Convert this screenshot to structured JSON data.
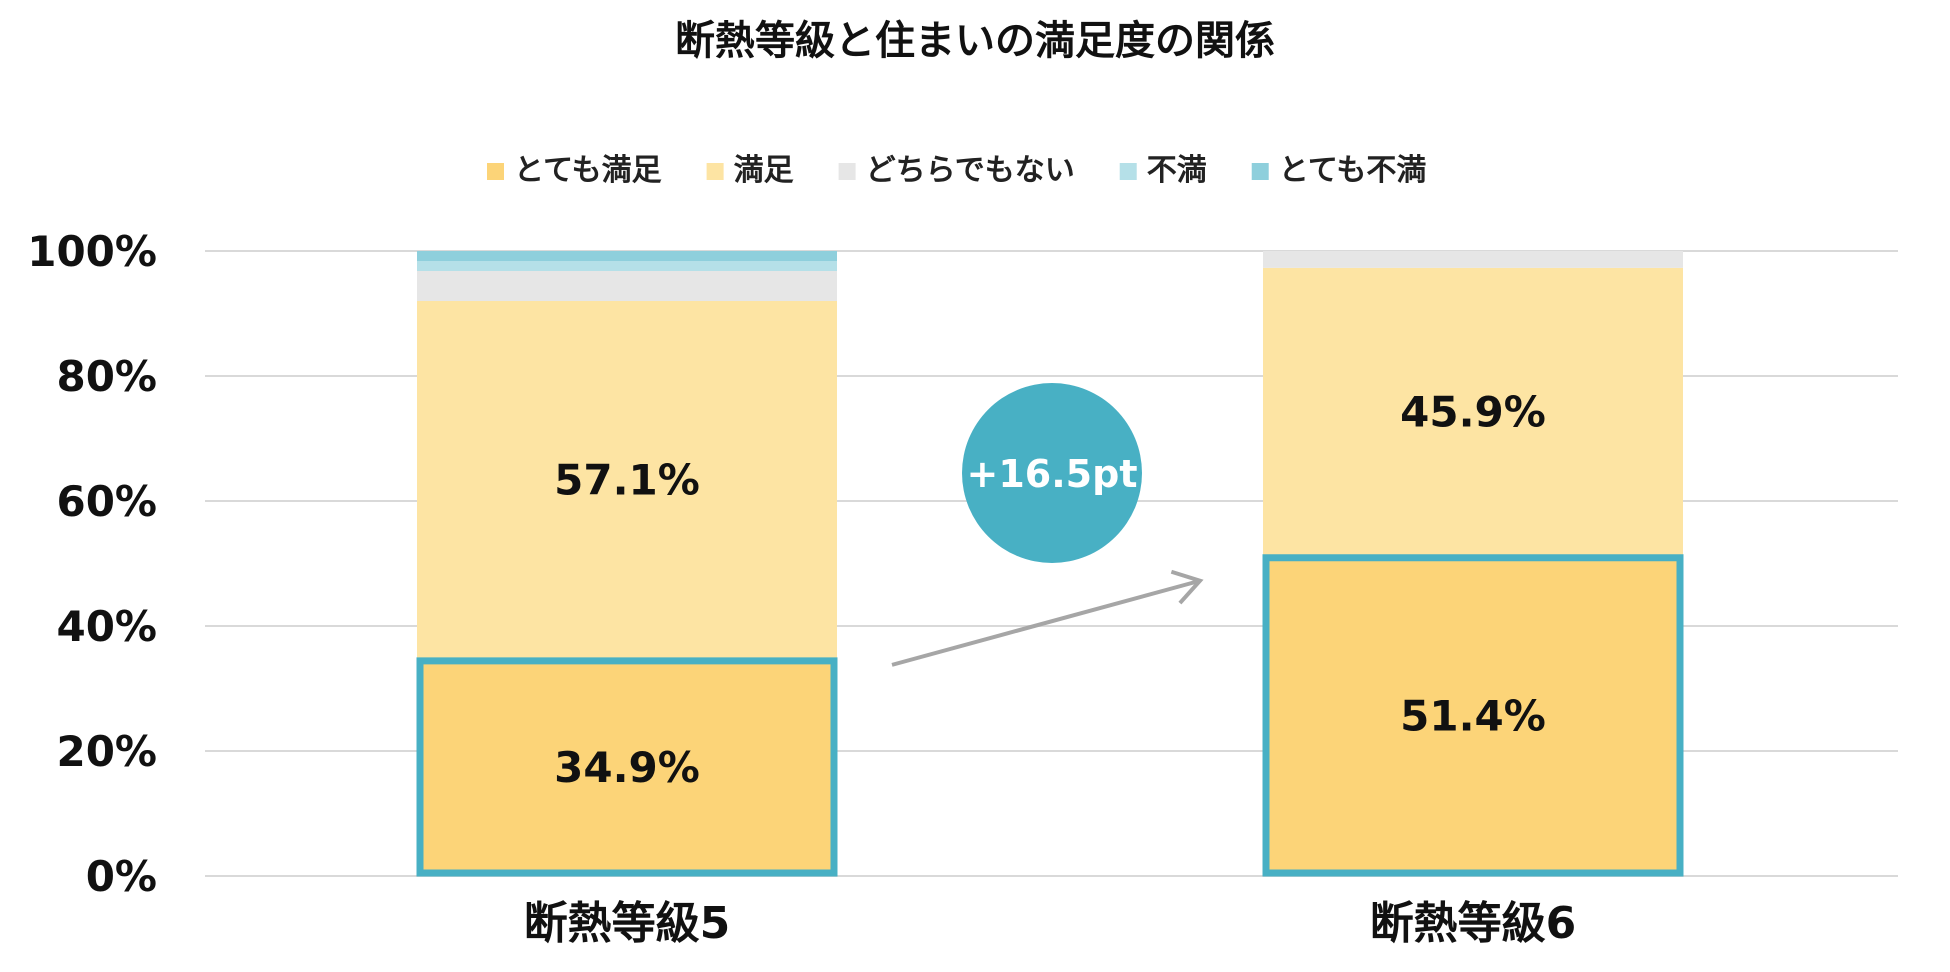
{
  "chart_data": {
    "type": "bar",
    "stacked": true,
    "title": "断熱等級と住まいの満足度の関係",
    "categories": [
      "断熱等級5",
      "断熱等級6"
    ],
    "series": [
      {
        "name": "とても満足",
        "color": "#fcd478",
        "values": [
          34.9,
          51.4
        ]
      },
      {
        "name": "満足",
        "color": "#fde4a3",
        "values": [
          57.1,
          45.9
        ]
      },
      {
        "name": "どちらでもない",
        "color": "#e6e6e6",
        "values": [
          4.8,
          2.7
        ]
      },
      {
        "name": "不満",
        "color": "#b5e0e8",
        "values": [
          1.6,
          0
        ]
      },
      {
        "name": "とても不満",
        "color": "#8ecfdc",
        "values": [
          1.6,
          0
        ]
      }
    ],
    "data_labels": [
      {
        "series": "とても満足",
        "category": "断熱等級5",
        "text": "34.9%"
      },
      {
        "series": "満足",
        "category": "断熱等級5",
        "text": "57.1%"
      },
      {
        "series": "とても満足",
        "category": "断熱等級6",
        "text": "51.4%"
      },
      {
        "series": "満足",
        "category": "断熱等級6",
        "text": "45.9%"
      }
    ],
    "yticks": [
      "0%",
      "20%",
      "40%",
      "60%",
      "80%",
      "100%"
    ],
    "ylim": [
      0,
      100
    ],
    "grid": true,
    "legend_position": "top",
    "highlight_series": "とても満足",
    "highlight_color": "#48b0c4",
    "annotation": {
      "text": "+16.5pt",
      "color": "#48b0c4",
      "arrow_color": "#a6a6a6"
    }
  }
}
